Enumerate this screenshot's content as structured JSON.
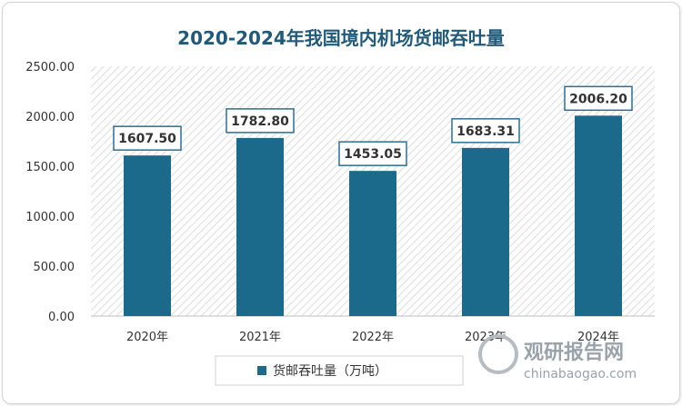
{
  "chart_data": {
    "type": "bar",
    "title": "2020-2024年我国境内机场货邮吞吐量",
    "categories": [
      "2020年",
      "2021年",
      "2022年",
      "2023年",
      "2024年"
    ],
    "series": [
      {
        "name": "货邮吞吐量（万吨）",
        "values": [
          1607.5,
          1782.8,
          1453.05,
          1683.31,
          2006.2
        ]
      }
    ],
    "data_labels": [
      "1607.50",
      "1782.80",
      "1453.05",
      "1683.31",
      "2006.20"
    ],
    "ylim": [
      0,
      2500
    ],
    "yticks": [
      "0.00",
      "500.00",
      "1000.00",
      "1500.00",
      "2000.00",
      "2500.00"
    ],
    "grid": false,
    "legend_position": "bottom",
    "colors": {
      "bar": "#1b6a8c",
      "title": "#1f5a7a"
    }
  },
  "watermark": {
    "name": "观研报告网",
    "url": "chinabaogao.com"
  }
}
